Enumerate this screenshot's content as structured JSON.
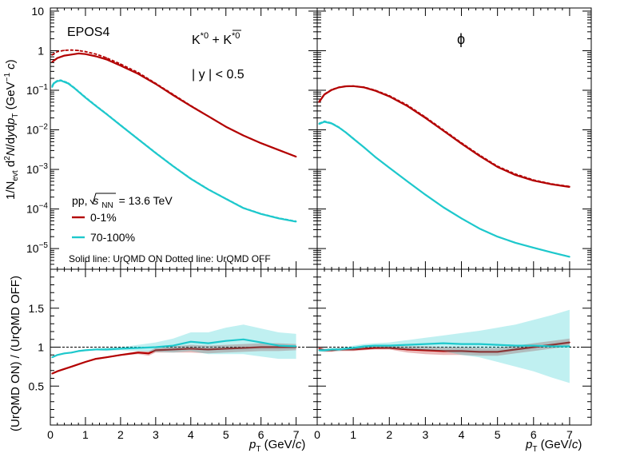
{
  "figure": {
    "generator_label": "EPOS4",
    "system_label": "pp, √s_NN = 13.6 TeV",
    "system_prefix": "pp,",
    "system_sqrt_sym": "s",
    "system_sqrt_sub": "NN",
    "system_energy": "= 13.6 TeV",
    "rapidity_label": "| y | < 0.5",
    "line_style_note": "Solid line: UrQMD ON Dotted line: UrQMD OFF",
    "colors": {
      "central": "#b30000",
      "peripheral": "#1ec8cc",
      "reference": "#000000"
    }
  },
  "chart_data": [
    {
      "type": "line",
      "panel": "top-left",
      "particle_label": "K*0 + anti-K*0",
      "title": "K*0 + K̄*0",
      "ylabel": "1/N_evt d²N/dy dp_T (GeV⁻¹ c)",
      "yscale": "log",
      "ylim": [
        3e-06,
        12
      ],
      "xlim": [
        0,
        7.6
      ],
      "xticks": [
        "0",
        "1",
        "2",
        "3",
        "4",
        "5",
        "6",
        "7"
      ],
      "yticks": [
        "10^-5",
        "10^-4",
        "10^-3",
        "10^-2",
        "10^-1",
        "1",
        "10"
      ],
      "legend": [
        "0-1%",
        "70-100%"
      ],
      "series": [
        {
          "name": "0-1% UrQMD ON",
          "x": [
            0.05,
            0.2,
            0.4,
            0.6,
            0.8,
            1.0,
            1.3,
            1.6,
            2.0,
            2.5,
            3.0,
            3.5,
            4.0,
            4.5,
            5.0,
            5.5,
            6.0,
            6.5,
            7.0
          ],
          "values": [
            0.52,
            0.65,
            0.75,
            0.8,
            0.85,
            0.82,
            0.72,
            0.6,
            0.42,
            0.26,
            0.145,
            0.075,
            0.04,
            0.022,
            0.012,
            0.0072,
            0.0046,
            0.0031,
            0.0021
          ]
        },
        {
          "name": "0-1% UrQMD OFF",
          "x": [
            0.05,
            0.2,
            0.4,
            0.6,
            0.8,
            1.0,
            1.3,
            1.6,
            2.0,
            2.5,
            3.0,
            3.5,
            4.0,
            4.5,
            5.0,
            5.5,
            6.0,
            6.5,
            7.0
          ],
          "values": [
            0.78,
            0.95,
            1.02,
            1.04,
            1.01,
            0.95,
            0.82,
            0.66,
            0.46,
            0.28,
            0.15,
            0.078,
            0.041,
            0.022,
            0.012,
            0.0072,
            0.0046,
            0.0031,
            0.0021
          ]
        },
        {
          "name": "70-100% UrQMD ON",
          "x": [
            0.05,
            0.1,
            0.2,
            0.3,
            0.5,
            0.7,
            1.0,
            1.3,
            1.6,
            2.0,
            2.5,
            3.0,
            3.5,
            4.0,
            4.5,
            5.0,
            5.5,
            6.0,
            6.5,
            7.0
          ],
          "values": [
            0.12,
            0.15,
            0.17,
            0.175,
            0.15,
            0.11,
            0.065,
            0.04,
            0.025,
            0.013,
            0.0058,
            0.0026,
            0.0012,
            0.00058,
            0.00031,
            0.00018,
            0.000105,
            7.5e-05,
            5.8e-05,
            4.8e-05
          ]
        },
        {
          "name": "70-100% UrQMD OFF",
          "x": [
            0.05,
            0.1,
            0.2,
            0.3,
            0.5,
            0.7,
            1.0,
            1.3,
            1.6,
            2.0,
            2.5,
            3.0,
            3.5,
            4.0,
            4.5,
            5.0,
            5.5,
            6.0,
            6.5,
            7.0
          ],
          "values": [
            0.13,
            0.155,
            0.175,
            0.18,
            0.155,
            0.113,
            0.067,
            0.041,
            0.0255,
            0.0132,
            0.0059,
            0.00265,
            0.00122,
            0.00059,
            0.000315,
            0.000183,
            0.000107,
            7.6e-05,
            5.9e-05,
            4.9e-05
          ]
        }
      ]
    },
    {
      "type": "line",
      "panel": "top-right",
      "particle_label": "phi",
      "title": "ϕ",
      "yscale": "log",
      "ylim": [
        3e-06,
        12
      ],
      "xlim": [
        0,
        7.6
      ],
      "xticks": [
        "0",
        "1",
        "2",
        "3",
        "4",
        "5",
        "6",
        "7"
      ],
      "series": [
        {
          "name": "0-1% UrQMD ON",
          "x": [
            0.05,
            0.2,
            0.4,
            0.6,
            0.8,
            1.0,
            1.3,
            1.6,
            2.0,
            2.5,
            3.0,
            3.5,
            4.0,
            4.5,
            5.0,
            5.5,
            6.0,
            6.5,
            7.0
          ],
          "values": [
            0.05,
            0.078,
            0.102,
            0.118,
            0.126,
            0.127,
            0.118,
            0.098,
            0.07,
            0.04,
            0.02,
            0.0095,
            0.0045,
            0.0022,
            0.00115,
            0.00072,
            0.00052,
            0.00042,
            0.00036
          ]
        },
        {
          "name": "0-1% UrQMD OFF",
          "x": [
            0.05,
            0.2,
            0.4,
            0.6,
            0.8,
            1.0,
            1.3,
            1.6,
            2.0,
            2.5,
            3.0,
            3.5,
            4.0,
            4.5,
            5.0,
            5.5,
            6.0,
            6.5,
            7.0
          ],
          "values": [
            0.052,
            0.08,
            0.104,
            0.119,
            0.127,
            0.128,
            0.12,
            0.101,
            0.073,
            0.042,
            0.021,
            0.0099,
            0.0047,
            0.0023,
            0.0012,
            0.00076,
            0.00054,
            0.00043,
            0.00037
          ]
        },
        {
          "name": "70-100% UrQMD ON",
          "x": [
            0.05,
            0.2,
            0.4,
            0.6,
            0.8,
            1.0,
            1.3,
            1.6,
            2.0,
            2.5,
            3.0,
            3.5,
            4.0,
            4.5,
            5.0,
            5.5,
            6.0,
            6.5,
            7.0
          ],
          "values": [
            0.014,
            0.016,
            0.0145,
            0.0115,
            0.0085,
            0.006,
            0.0036,
            0.0021,
            0.0011,
            0.0005,
            0.00023,
            0.00011,
            5.8e-05,
            3.2e-05,
            2e-05,
            1.4e-05,
            1.05e-05,
            8e-06,
            6.2e-06
          ]
        },
        {
          "name": "70-100% UrQMD OFF",
          "x": [
            0.05,
            0.2,
            0.4,
            0.6,
            0.8,
            1.0,
            1.3,
            1.6,
            2.0,
            2.5,
            3.0,
            3.5,
            4.0,
            4.5,
            5.0,
            5.5,
            6.0,
            6.5,
            7.0
          ],
          "values": [
            0.0145,
            0.0165,
            0.0148,
            0.0117,
            0.0086,
            0.0061,
            0.0036,
            0.0021,
            0.0011,
            0.0005,
            0.00023,
            0.00011,
            5.8e-05,
            3.2e-05,
            2e-05,
            1.4e-05,
            1.05e-05,
            8e-06,
            6.2e-06
          ]
        }
      ]
    },
    {
      "type": "line",
      "panel": "bottom-left",
      "ylabel": "(UrQMD ON) / (UrQMD OFF)",
      "xlabel": "p_T (GeV/c)",
      "ylim": [
        0,
        2
      ],
      "xlim": [
        0,
        7.6
      ],
      "xticks": [
        "0",
        "1",
        "2",
        "3",
        "4",
        "5",
        "6",
        "7"
      ],
      "yticks": [
        "0.5",
        "1",
        "1.5"
      ],
      "reference_line": 1,
      "series": [
        {
          "name": "0-1% ratio",
          "x": [
            0.05,
            0.2,
            0.4,
            0.6,
            0.8,
            1.0,
            1.3,
            1.6,
            2.0,
            2.5,
            2.8,
            3.0,
            3.5,
            4.0,
            4.5,
            5.0,
            5.5,
            6.0,
            6.5,
            7.0
          ],
          "values": [
            0.66,
            0.69,
            0.72,
            0.75,
            0.78,
            0.81,
            0.85,
            0.87,
            0.9,
            0.93,
            0.92,
            0.96,
            0.97,
            0.98,
            0.97,
            0.98,
            0.99,
            1.0,
            1.0,
            1.0
          ],
          "band": [
            0.01,
            0.01,
            0.01,
            0.01,
            0.01,
            0.01,
            0.01,
            0.01,
            0.01,
            0.02,
            0.03,
            0.03,
            0.04,
            0.05,
            0.05,
            0.05,
            0.05,
            0.05,
            0.05,
            0.04
          ]
        },
        {
          "name": "70-100% ratio",
          "x": [
            0.05,
            0.2,
            0.4,
            0.6,
            0.8,
            1.0,
            1.3,
            1.6,
            2.0,
            2.5,
            3.0,
            3.5,
            4.0,
            4.5,
            5.0,
            5.5,
            6.0,
            6.5,
            7.0
          ],
          "values": [
            0.87,
            0.9,
            0.92,
            0.93,
            0.95,
            0.96,
            0.97,
            0.97,
            0.98,
            0.99,
            1.0,
            1.02,
            1.07,
            1.05,
            1.08,
            1.1,
            1.06,
            1.02,
            1.01
          ],
          "band": [
            0.01,
            0.01,
            0.01,
            0.01,
            0.01,
            0.01,
            0.01,
            0.02,
            0.02,
            0.04,
            0.06,
            0.09,
            0.12,
            0.14,
            0.17,
            0.19,
            0.18,
            0.17,
            0.16
          ]
        }
      ]
    },
    {
      "type": "line",
      "panel": "bottom-right",
      "xlabel": "p_T (GeV/c)",
      "ylim": [
        0,
        2
      ],
      "xlim": [
        0,
        7.6
      ],
      "xticks": [
        "0",
        "1",
        "2",
        "3",
        "4",
        "5",
        "6",
        "7"
      ],
      "reference_line": 1,
      "series": [
        {
          "name": "0-1% ratio",
          "x": [
            0.05,
            0.2,
            0.4,
            0.6,
            0.8,
            1.0,
            1.3,
            1.6,
            2.0,
            2.5,
            3.0,
            3.5,
            4.0,
            4.5,
            5.0,
            5.5,
            6.0,
            6.5,
            7.0
          ],
          "values": [
            0.98,
            0.96,
            0.96,
            0.97,
            0.97,
            0.97,
            0.98,
            0.99,
            0.99,
            0.97,
            0.96,
            0.95,
            0.95,
            0.94,
            0.94,
            0.97,
            1.0,
            1.03,
            1.06
          ],
          "band": [
            0.03,
            0.02,
            0.02,
            0.02,
            0.02,
            0.02,
            0.02,
            0.02,
            0.02,
            0.04,
            0.05,
            0.05,
            0.05,
            0.05,
            0.05,
            0.05,
            0.05,
            0.05,
            0.05
          ]
        },
        {
          "name": "70-100% ratio",
          "x": [
            0.05,
            0.2,
            0.4,
            0.6,
            0.8,
            1.0,
            1.3,
            1.6,
            2.0,
            2.5,
            3.0,
            3.5,
            4.0,
            4.5,
            5.0,
            5.5,
            6.0,
            6.5,
            7.0
          ],
          "values": [
            0.96,
            0.96,
            0.97,
            0.97,
            0.98,
            0.99,
            1.01,
            1.02,
            1.02,
            1.03,
            1.04,
            1.05,
            1.04,
            1.04,
            1.03,
            1.02,
            1.02,
            1.01,
            1.01
          ],
          "band": [
            0.02,
            0.02,
            0.02,
            0.02,
            0.02,
            0.03,
            0.03,
            0.03,
            0.04,
            0.06,
            0.08,
            0.1,
            0.14,
            0.17,
            0.22,
            0.27,
            0.33,
            0.4,
            0.47
          ]
        }
      ]
    }
  ]
}
